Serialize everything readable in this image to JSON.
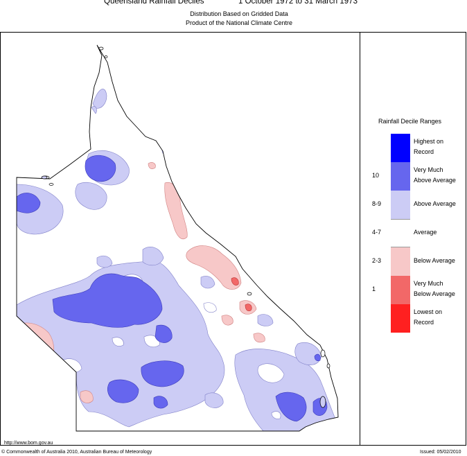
{
  "title": "Queensland Rainfall Deciles",
  "period": "1 October 1972 to 31 March 1973",
  "subtitle_1": "Distribution Based on Gridded Data",
  "subtitle_2": "Product of the National Climate Centre",
  "legend": {
    "title": "Rainfall Decile Ranges",
    "items": [
      {
        "code": "",
        "label_1": "Highest on",
        "label_2": "Record",
        "color": "#0000ff"
      },
      {
        "code": "10",
        "label_1": "Very Much",
        "label_2": "Above Average",
        "color": "#6666ee"
      },
      {
        "code": "8-9",
        "label_1": "Above Average",
        "label_2": "",
        "color": "#ccccf5"
      },
      {
        "code": "4-7",
        "label_1": "Average",
        "label_2": "",
        "color": "#ffffff"
      },
      {
        "code": "2-3",
        "label_1": "Below Average",
        "label_2": "",
        "color": "#f7c8c8"
      },
      {
        "code": "1",
        "label_1": "Very Much",
        "label_2": "Below Average",
        "color": "#f26868"
      },
      {
        "code": "",
        "label_1": "Lowest on",
        "label_2": "Record",
        "color": "#ff2020"
      }
    ]
  },
  "footer": {
    "url": "http://www.bom.gov.au",
    "copyright": "© Commonwealth of Australia 2010, Australian Bureau of Meteorology",
    "issued": "Issued: 05/02/2010"
  }
}
